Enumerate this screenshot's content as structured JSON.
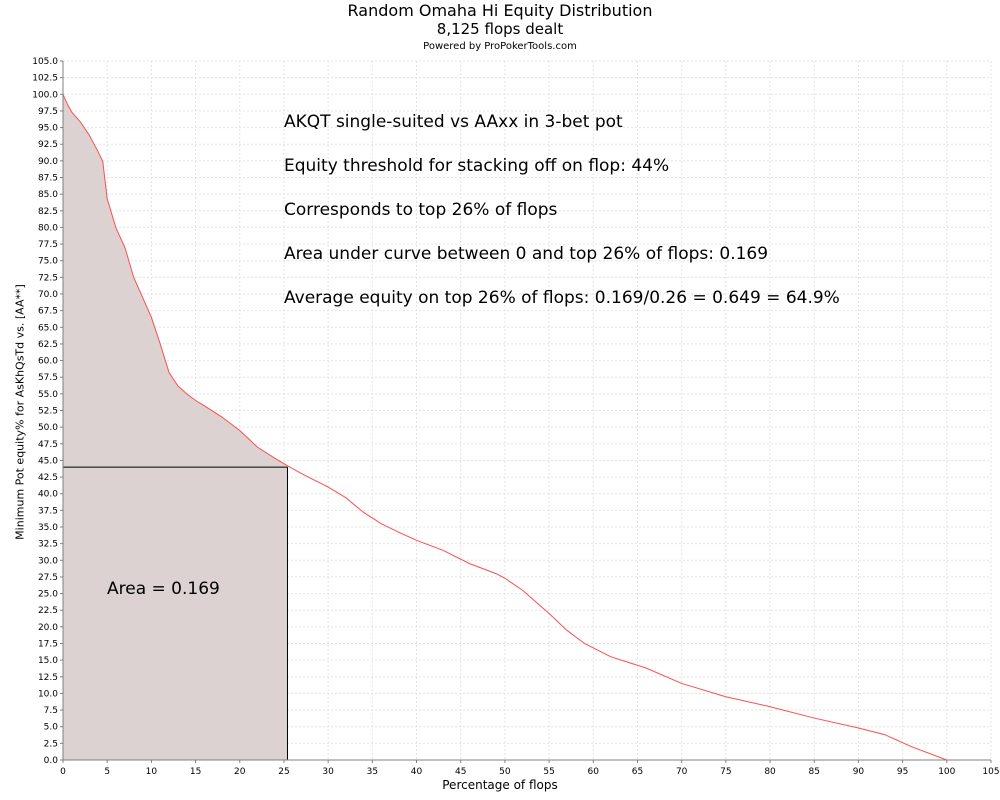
{
  "chart_data": {
    "type": "area",
    "title": "Random Omaha Hi Equity Distribution",
    "subtitle": "8,125 flops dealt",
    "credit": "Powered by ProPokerTools.com",
    "xlabel": "Percentage of flops",
    "ylabel": "Minimum Pot equity% for AsKhQsTd vs. [AA**]",
    "xlim": [
      0,
      105
    ],
    "ylim": [
      0,
      105
    ],
    "x_ticks": [
      0,
      5,
      10,
      15,
      20,
      25,
      30,
      35,
      40,
      45,
      50,
      55,
      60,
      65,
      70,
      75,
      80,
      85,
      90,
      95,
      100,
      105
    ],
    "y_ticks": [
      0.0,
      2.5,
      5.0,
      7.5,
      10.0,
      12.5,
      15.0,
      17.5,
      20.0,
      22.5,
      25.0,
      27.5,
      30.0,
      32.5,
      35.0,
      37.5,
      40.0,
      42.5,
      45.0,
      47.5,
      50.0,
      52.5,
      55.0,
      57.5,
      60.0,
      62.5,
      65.0,
      67.5,
      70.0,
      72.5,
      75.0,
      77.5,
      80.0,
      82.5,
      85.0,
      87.5,
      90.0,
      92.5,
      95.0,
      97.5,
      100.0,
      102.5,
      105.0
    ],
    "grid": true,
    "series": [
      {
        "color": "#ff4d4d",
        "x": [
          0,
          0.5,
          1,
          2,
          3,
          4,
          4.5,
          5,
          6,
          7,
          8,
          9,
          10,
          11,
          12,
          13,
          14,
          15,
          16,
          18,
          20,
          22,
          24,
          25.4,
          27,
          30,
          32,
          34,
          36,
          38,
          40,
          43,
          46,
          49,
          50,
          52,
          55,
          57,
          59,
          62,
          66,
          70,
          75,
          80,
          85,
          90,
          93,
          96,
          100
        ],
        "y": [
          100.0,
          98.5,
          97.3,
          95.8,
          93.8,
          91.3,
          89.9,
          84.3,
          79.9,
          77.0,
          72.5,
          69.5,
          66.5,
          62.5,
          58.2,
          56.2,
          55.0,
          54.0,
          53.2,
          51.5,
          49.5,
          47.0,
          45.3,
          44.2,
          43.0,
          41.0,
          39.4,
          37.2,
          35.5,
          34.2,
          33.0,
          31.5,
          29.5,
          28.0,
          27.3,
          25.5,
          22.0,
          19.5,
          17.5,
          15.5,
          13.8,
          11.5,
          9.5,
          8.0,
          6.3,
          4.8,
          3.8,
          2.0,
          0.0
        ]
      }
    ],
    "shaded_area": {
      "x_from": 0,
      "x_to": 25.4,
      "fill": "#dcd2d2"
    },
    "threshold_box": {
      "x": 25.4,
      "y": 44.0
    },
    "annotations": [
      "AKQT single-suited vs AAxx in 3-bet pot",
      "Equity threshold for stacking off on flop: 44%",
      "Corresponds to top 26% of flops",
      "Area under curve between 0 and top 26% of flops: 0.169",
      "Average equity on top 26% of flops: 0.169/0.26 = 0.649 = 64.9%"
    ],
    "area_label": "Area = 0.169"
  }
}
